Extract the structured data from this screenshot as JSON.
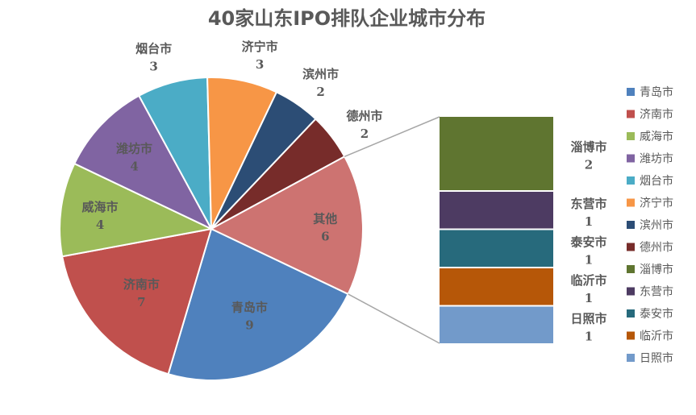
{
  "chart_data": {
    "type": "pie",
    "subtype": "bar-of-pie",
    "title": "40家山东IPO排队企业城市分布",
    "main_pie": [
      {
        "label": "青岛市",
        "value": 9,
        "color": "#4F81BD"
      },
      {
        "label": "济南市",
        "value": 7,
        "color": "#C0504D"
      },
      {
        "label": "威海市",
        "value": 4,
        "color": "#9BBB59"
      },
      {
        "label": "潍坊市",
        "value": 4,
        "color": "#8064A2"
      },
      {
        "label": "烟台市",
        "value": 3,
        "color": "#4BACC6"
      },
      {
        "label": "济宁市",
        "value": 3,
        "color": "#F79646"
      },
      {
        "label": "滨州市",
        "value": 2,
        "color": "#2C4D75"
      },
      {
        "label": "德州市",
        "value": 2,
        "color": "#772C2A"
      },
      {
        "label": "其他",
        "value": 6,
        "color": "#CD7371"
      }
    ],
    "secondary_bar": [
      {
        "label": "淄博市",
        "value": 2,
        "color": "#5F7530"
      },
      {
        "label": "东营市",
        "value": 1,
        "color": "#4D3B62"
      },
      {
        "label": "泰安市",
        "value": 1,
        "color": "#276A7C"
      },
      {
        "label": "临沂市",
        "value": 1,
        "color": "#B65708"
      },
      {
        "label": "日照市",
        "value": 1,
        "color": "#729ACA"
      }
    ],
    "legend": {
      "position": "right",
      "entries": [
        {
          "label": "青岛市",
          "color": "#4F81BD"
        },
        {
          "label": "济南市",
          "color": "#C0504D"
        },
        {
          "label": "威海市",
          "color": "#9BBB59"
        },
        {
          "label": "潍坊市",
          "color": "#8064A2"
        },
        {
          "label": "烟台市",
          "color": "#4BACC6"
        },
        {
          "label": "济宁市",
          "color": "#F79646"
        },
        {
          "label": "滨州市",
          "color": "#2C4D75"
        },
        {
          "label": "德州市",
          "color": "#772C2A"
        },
        {
          "label": "淄博市",
          "color": "#5F7530"
        },
        {
          "label": "东营市",
          "color": "#4D3B62"
        },
        {
          "label": "泰安市",
          "color": "#276A7C"
        },
        {
          "label": "临沂市",
          "color": "#B65708"
        },
        {
          "label": "日照市",
          "color": "#729ACA"
        }
      ]
    },
    "label_colors": {
      "inside": "#595959",
      "outside": "#595959"
    }
  }
}
